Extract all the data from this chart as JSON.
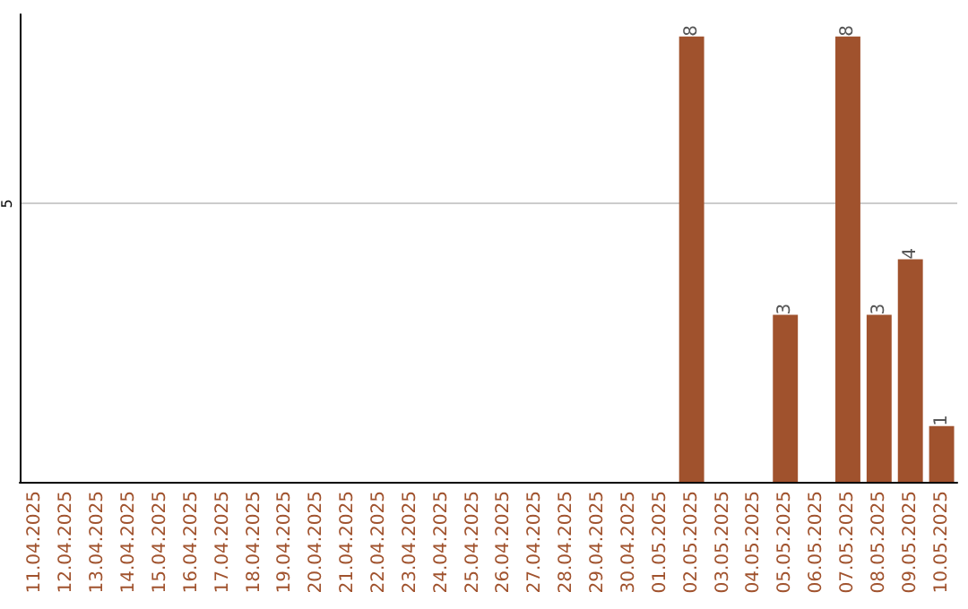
{
  "chart_data": {
    "type": "bar",
    "categories": [
      "11.04.2025",
      "12.04.2025",
      "13.04.2025",
      "14.04.2025",
      "15.04.2025",
      "16.04.2025",
      "17.04.2025",
      "18.04.2025",
      "19.04.2025",
      "20.04.2025",
      "21.04.2025",
      "22.04.2025",
      "23.04.2025",
      "24.04.2025",
      "25.04.2025",
      "26.04.2025",
      "27.04.2025",
      "28.04.2025",
      "29.04.2025",
      "30.04.2025",
      "01.05.2025",
      "02.05.2025",
      "03.05.2025",
      "04.05.2025",
      "05.05.2025",
      "06.05.2025",
      "07.05.2025",
      "08.05.2025",
      "09.05.2025",
      "10.05.2025"
    ],
    "values": [
      null,
      null,
      null,
      null,
      null,
      null,
      null,
      null,
      null,
      null,
      null,
      null,
      null,
      null,
      null,
      null,
      null,
      null,
      null,
      null,
      null,
      8,
      null,
      null,
      3,
      null,
      8,
      3,
      4,
      1
    ],
    "color": "#a0522d",
    "ylim": [
      0,
      8.4
    ],
    "yticks": [
      5
    ],
    "grid": "y",
    "data_labels": true
  }
}
